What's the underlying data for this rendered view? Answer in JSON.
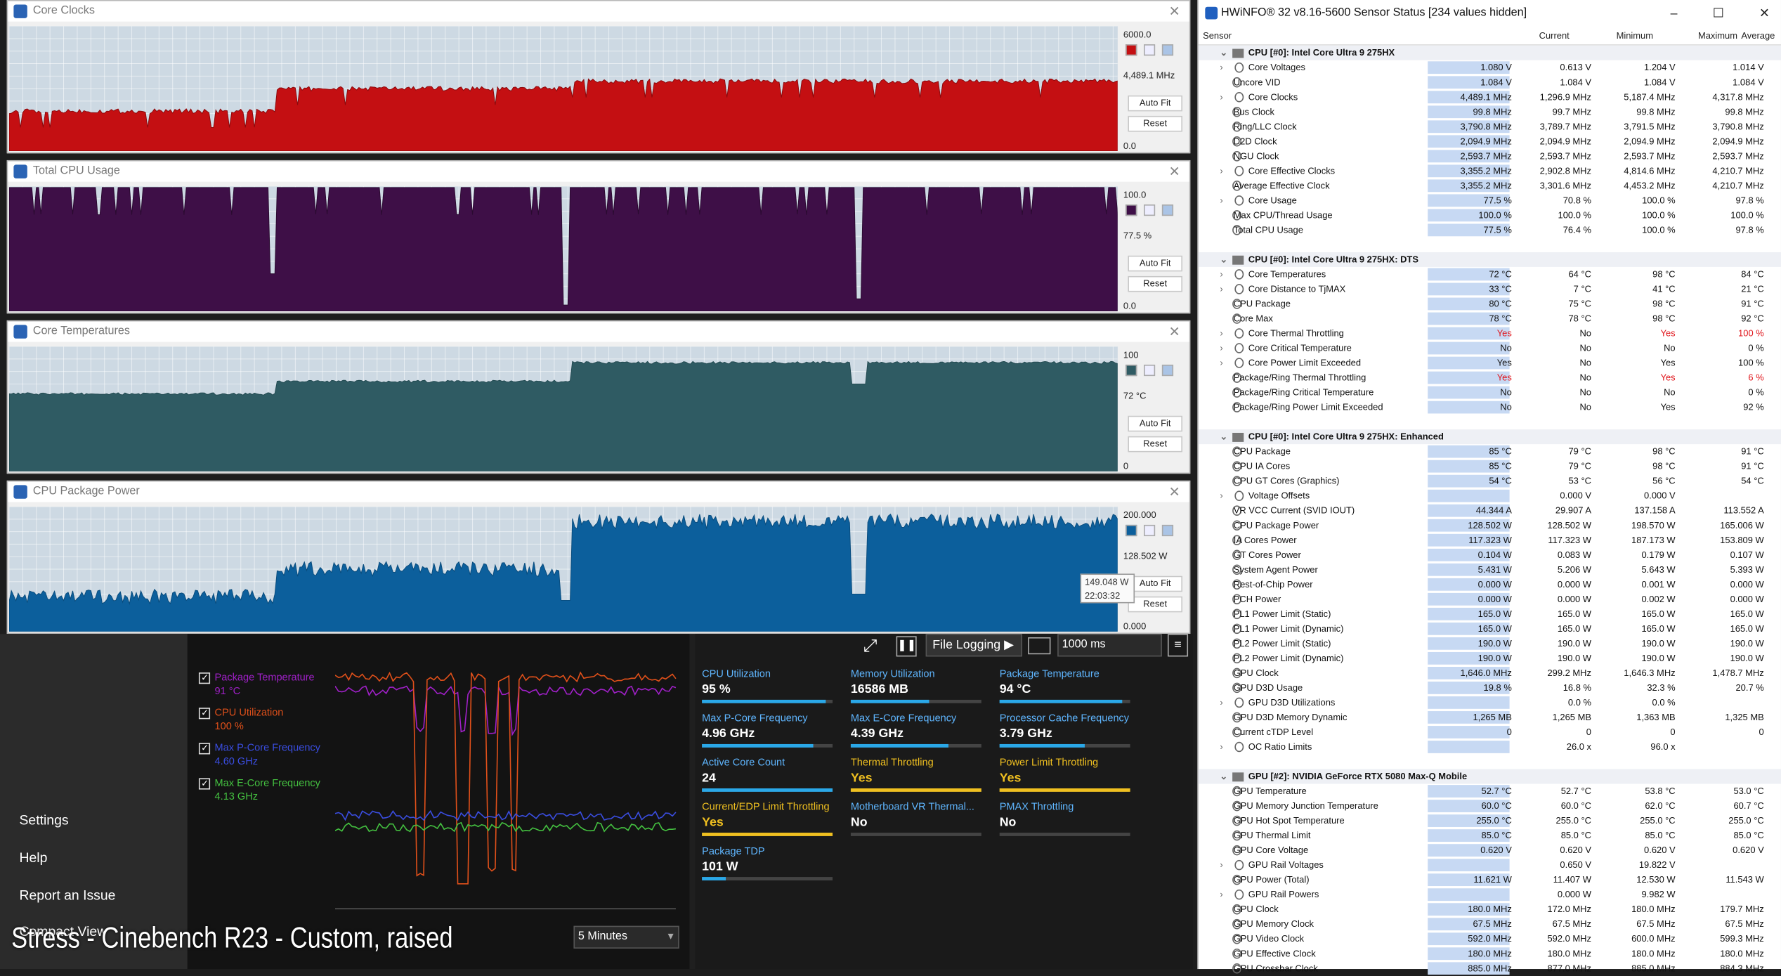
{
  "graphs": [
    {
      "title": "Core Clocks",
      "max_label": "6000.0",
      "cur_label": "4,489.1 MHz",
      "min_label": "0.0",
      "color": "#c40f12",
      "color2": "#8a0a0d",
      "max": 6000,
      "series_hint": "clock"
    },
    {
      "title": "Total CPU Usage",
      "max_label": "100.0",
      "cur_label": "77.5 %",
      "min_label": "0.0",
      "color": "#3e0f47",
      "color2": "#2a0a30",
      "max": 100,
      "series_hint": "usage"
    },
    {
      "title": "Core Temperatures",
      "max_label": "100",
      "cur_label": "72 °C",
      "min_label": "0",
      "color": "#2f5b63",
      "color2": "#234a51",
      "max": 100,
      "series_hint": "temp"
    },
    {
      "title": "CPU Package Power",
      "max_label": "200.000",
      "cur_label": "128.502 W",
      "min_label": "0.000",
      "color": "#0c5f9c",
      "color2": "#094c7d",
      "max": 200,
      "series_hint": "power"
    }
  ],
  "graph_buttons": {
    "auto_fit": "Auto Fit",
    "reset": "Reset"
  },
  "tooltip": {
    "value": "149.048 W",
    "time": "22:03:32"
  },
  "hwinfo": {
    "title": "HWiNFO® 32 v8.16-5600 Sensor Status [234 values hidden]",
    "window_controls": "– ☐ ✕",
    "columns": {
      "sensor": "Sensor",
      "current": "Current",
      "minimum": "Minimum",
      "maximum": "Maximum",
      "average": "Average"
    },
    "rows": [
      {
        "t": "sec",
        "n": "CPU [#0]: Intel Core Ultra 9 275HX"
      },
      {
        "t": "c",
        "n": "Core Voltages",
        "v": [
          "1.080 V",
          "0.613 V",
          "1.204 V",
          "1.014 V"
        ]
      },
      {
        "n": "Uncore VID",
        "v": [
          "1.084 V",
          "1.084 V",
          "1.084 V",
          "1.084 V"
        ]
      },
      {
        "t": "c",
        "n": "Core Clocks",
        "v": [
          "4,489.1 MHz",
          "1,296.9 MHz",
          "5,187.4 MHz",
          "4,317.8 MHz"
        ]
      },
      {
        "n": "Bus Clock",
        "v": [
          "99.8 MHz",
          "99.7 MHz",
          "99.8 MHz",
          "99.8 MHz"
        ]
      },
      {
        "n": "Ring/LLC Clock",
        "v": [
          "3,790.8 MHz",
          "3,789.7 MHz",
          "3,791.5 MHz",
          "3,790.8 MHz"
        ]
      },
      {
        "n": "D2D Clock",
        "v": [
          "2,094.9 MHz",
          "2,094.9 MHz",
          "2,094.9 MHz",
          "2,094.9 MHz"
        ]
      },
      {
        "n": "NGU Clock",
        "v": [
          "2,593.7 MHz",
          "2,593.7 MHz",
          "2,593.7 MHz",
          "2,593.7 MHz"
        ]
      },
      {
        "t": "c",
        "n": "Core Effective Clocks",
        "v": [
          "3,355.2 MHz",
          "2,902.8 MHz",
          "4,814.6 MHz",
          "4,210.7 MHz"
        ]
      },
      {
        "n": "Average Effective Clock",
        "v": [
          "3,355.2 MHz",
          "3,301.6 MHz",
          "4,453.2 MHz",
          "4,210.7 MHz"
        ]
      },
      {
        "t": "c",
        "n": "Core Usage",
        "v": [
          "77.5 %",
          "70.8 %",
          "100.0 %",
          "97.8 %"
        ]
      },
      {
        "n": "Max CPU/Thread Usage",
        "v": [
          "100.0 %",
          "100.0 %",
          "100.0 %",
          "100.0 %"
        ]
      },
      {
        "n": "Total CPU Usage",
        "v": [
          "77.5 %",
          "76.4 %",
          "100.0 %",
          "97.8 %"
        ]
      },
      {
        "t": "gap"
      },
      {
        "t": "sec",
        "n": "CPU [#0]: Intel Core Ultra 9 275HX: DTS"
      },
      {
        "t": "c",
        "n": "Core Temperatures",
        "v": [
          "72 °C",
          "64 °C",
          "98 °C",
          "84 °C"
        ]
      },
      {
        "t": "c",
        "n": "Core Distance to TjMAX",
        "v": [
          "33 °C",
          "7 °C",
          "41 °C",
          "21 °C"
        ]
      },
      {
        "n": "CPU Package",
        "v": [
          "80 °C",
          "75 °C",
          "98 °C",
          "91 °C"
        ]
      },
      {
        "n": "Core Max",
        "v": [
          "78 °C",
          "78 °C",
          "98 °C",
          "92 °C"
        ]
      },
      {
        "t": "c",
        "n": "Core Thermal Throttling",
        "v": [
          "Yes",
          "No",
          "Yes",
          "100 %"
        ],
        "red": [
          0,
          2,
          3
        ]
      },
      {
        "t": "c",
        "n": "Core Critical Temperature",
        "v": [
          "No",
          "No",
          "No",
          "0 %"
        ]
      },
      {
        "t": "c",
        "n": "Core Power Limit Exceeded",
        "v": [
          "Yes",
          "No",
          "Yes",
          "100 %"
        ]
      },
      {
        "n": "Package/Ring Thermal Throttling",
        "v": [
          "Yes",
          "No",
          "Yes",
          "6 %"
        ],
        "red": [
          0,
          2,
          3
        ]
      },
      {
        "n": "Package/Ring Critical Temperature",
        "v": [
          "No",
          "No",
          "No",
          "0 %"
        ]
      },
      {
        "n": "Package/Ring Power Limit Exceeded",
        "v": [
          "No",
          "No",
          "Yes",
          "92 %"
        ]
      },
      {
        "t": "gap"
      },
      {
        "t": "sec",
        "n": "CPU [#0]: Intel Core Ultra 9 275HX: Enhanced"
      },
      {
        "n": "CPU Package",
        "v": [
          "85 °C",
          "79 °C",
          "98 °C",
          "91 °C"
        ]
      },
      {
        "n": "CPU IA Cores",
        "v": [
          "85 °C",
          "79 °C",
          "98 °C",
          "91 °C"
        ]
      },
      {
        "n": "CPU GT Cores (Graphics)",
        "v": [
          "54 °C",
          "53 °C",
          "56 °C",
          "54 °C"
        ]
      },
      {
        "t": "c",
        "n": "Voltage Offsets",
        "v": [
          "",
          "0.000 V",
          "0.000 V",
          ""
        ]
      },
      {
        "n": "VR VCC Current (SVID IOUT)",
        "v": [
          "44.344 A",
          "29.907 A",
          "137.158 A",
          "113.552 A"
        ]
      },
      {
        "n": "CPU Package Power",
        "v": [
          "128.502 W",
          "128.502 W",
          "198.570 W",
          "165.006 W"
        ]
      },
      {
        "n": "IA Cores Power",
        "v": [
          "117.323 W",
          "117.323 W",
          "187.173 W",
          "153.809 W"
        ]
      },
      {
        "n": "GT Cores Power",
        "v": [
          "0.104 W",
          "0.083 W",
          "0.179 W",
          "0.107 W"
        ]
      },
      {
        "n": "System Agent Power",
        "v": [
          "5.431 W",
          "5.206 W",
          "5.643 W",
          "5.393 W"
        ]
      },
      {
        "n": "Rest-of-Chip Power",
        "v": [
          "0.000 W",
          "0.000 W",
          "0.001 W",
          "0.000 W"
        ]
      },
      {
        "n": "PCH Power",
        "v": [
          "0.000 W",
          "0.000 W",
          "0.002 W",
          "0.000 W"
        ]
      },
      {
        "n": "PL1 Power Limit (Static)",
        "v": [
          "165.0 W",
          "165.0 W",
          "165.0 W",
          "165.0 W"
        ]
      },
      {
        "n": "PL1 Power Limit (Dynamic)",
        "v": [
          "165.0 W",
          "165.0 W",
          "165.0 W",
          "165.0 W"
        ]
      },
      {
        "n": "PL2 Power Limit (Static)",
        "v": [
          "190.0 W",
          "190.0 W",
          "190.0 W",
          "190.0 W"
        ]
      },
      {
        "n": "PL2 Power Limit (Dynamic)",
        "v": [
          "190.0 W",
          "190.0 W",
          "190.0 W",
          "190.0 W"
        ]
      },
      {
        "n": "GPU Clock",
        "v": [
          "1,646.0 MHz",
          "299.2 MHz",
          "1,646.3 MHz",
          "1,478.7 MHz"
        ]
      },
      {
        "n": "GPU D3D Usage",
        "v": [
          "19.8 %",
          "16.8 %",
          "32.3 %",
          "20.7 %"
        ]
      },
      {
        "t": "c",
        "n": "GPU D3D Utilizations",
        "v": [
          "",
          "0.0 %",
          "0.0 %",
          ""
        ]
      },
      {
        "n": "GPU D3D Memory Dynamic",
        "v": [
          "1,265 MB",
          "1,265 MB",
          "1,363 MB",
          "1,325 MB"
        ]
      },
      {
        "n": "Current cTDP Level",
        "v": [
          "0",
          "0",
          "0",
          "0"
        ]
      },
      {
        "t": "c",
        "n": "OC Ratio Limits",
        "v": [
          "",
          "26.0 x",
          "96.0 x",
          ""
        ]
      },
      {
        "t": "gap"
      },
      {
        "t": "sec",
        "n": "GPU [#2]: NVIDIA  GeForce RTX 5080 Max-Q Mobile"
      },
      {
        "n": "GPU Temperature",
        "v": [
          "52.7 °C",
          "52.7 °C",
          "53.8 °C",
          "53.0 °C"
        ]
      },
      {
        "n": "GPU Memory Junction Temperature",
        "v": [
          "60.0 °C",
          "60.0 °C",
          "62.0 °C",
          "60.7 °C"
        ]
      },
      {
        "n": "GPU Hot Spot Temperature",
        "v": [
          "255.0 °C",
          "255.0 °C",
          "255.0 °C",
          "255.0 °C"
        ]
      },
      {
        "n": "GPU Thermal Limit",
        "v": [
          "85.0 °C",
          "85.0 °C",
          "85.0 °C",
          "85.0 °C"
        ]
      },
      {
        "n": "GPU Core Voltage",
        "v": [
          "0.620 V",
          "0.620 V",
          "0.620 V",
          "0.620 V"
        ]
      },
      {
        "t": "c",
        "n": "GPU Rail Voltages",
        "v": [
          "",
          "0.650 V",
          "19.822 V",
          ""
        ]
      },
      {
        "n": "GPU Power (Total)",
        "v": [
          "11.621 W",
          "11.407 W",
          "12.530 W",
          "11.543 W"
        ]
      },
      {
        "t": "c",
        "n": "GPU Rail Powers",
        "v": [
          "",
          "0.000 W",
          "9.982 W",
          ""
        ]
      },
      {
        "n": "GPU Clock",
        "v": [
          "180.0 MHz",
          "172.0 MHz",
          "180.0 MHz",
          "179.7 MHz"
        ]
      },
      {
        "n": "GPU Memory Clock",
        "v": [
          "67.5 MHz",
          "67.5 MHz",
          "67.5 MHz",
          "67.5 MHz"
        ]
      },
      {
        "n": "GPU Video Clock",
        "v": [
          "592.0 MHz",
          "592.0 MHz",
          "600.0 MHz",
          "599.3 MHz"
        ]
      },
      {
        "n": "GPU Effective Clock",
        "v": [
          "180.0 MHz",
          "180.0 MHz",
          "180.0 MHz",
          "180.0 MHz"
        ]
      },
      {
        "n": "GPU Crossbar Clock",
        "v": [
          "885.0 MHz",
          "877.0 MHz",
          "885.0 MHz",
          "884.3 MHz"
        ]
      }
    ]
  },
  "nav": {
    "settings": "Settings",
    "help": "Help",
    "report": "Report an Issue",
    "compact": "Compact View"
  },
  "legend": [
    {
      "name": "Package Temperature",
      "value": "91 °C",
      "color": "#a020c8"
    },
    {
      "name": "CPU Utilization",
      "value": "100 %",
      "color": "#e0501a"
    },
    {
      "name": "Max P-Core Frequency",
      "value": "4.60 GHz",
      "color": "#3a4de0"
    },
    {
      "name": "Max E-Core Frequency",
      "value": "4.13 GHz",
      "color": "#44c040"
    }
  ],
  "toolbar": {
    "file_logging": "File Logging ▶",
    "interval": "1000 ms"
  },
  "tiles": [
    {
      "label": "CPU Utilization",
      "value": "95 %",
      "color": "#fff",
      "bar": "#2aa8e8",
      "fill": 0.95
    },
    {
      "label": "Memory Utilization",
      "value": "16586 MB",
      "color": "#fff",
      "bar": "#2aa8e8",
      "fill": 0.6
    },
    {
      "label": "Package Temperature",
      "value": "94 °C",
      "color": "#fff",
      "bar": "#2aa8e8",
      "fill": 0.94
    },
    {
      "label": "Max P-Core Frequency",
      "value": "4.96 GHz",
      "color": "#fff",
      "bar": "#2aa8e8",
      "fill": 0.85
    },
    {
      "label": "Max E-Core Frequency",
      "value": "4.39 GHz",
      "color": "#fff",
      "bar": "#2aa8e8",
      "fill": 0.75
    },
    {
      "label": "Processor Cache Frequency",
      "value": "3.79 GHz",
      "color": "#fff",
      "bar": "#2aa8e8",
      "fill": 0.65
    },
    {
      "label": "Active Core Count",
      "value": "24",
      "color": "#fff",
      "bar": "#2aa8e8",
      "fill": 1.0
    },
    {
      "label": "Thermal Throttling",
      "value": "Yes",
      "color": "#f0c020",
      "bar": "#f0c020",
      "fill": 1.0,
      "label_color": "#f0c020"
    },
    {
      "label": "Power Limit Throttling",
      "value": "Yes",
      "color": "#f0c020",
      "bar": "#f0c020",
      "fill": 1.0,
      "label_color": "#f0c020"
    },
    {
      "label": "Current/EDP Limit Throttling",
      "value": "Yes",
      "color": "#f0c020",
      "bar": "#f0c020",
      "fill": 1.0,
      "label_color": "#f0c020"
    },
    {
      "label": "Motherboard VR Thermal...",
      "value": "No",
      "color": "#fff",
      "bar": "#2aa8e8",
      "fill": 0.0
    },
    {
      "label": "PMAX Throttling",
      "value": "No",
      "color": "#fff",
      "bar": "#2aa8e8",
      "fill": 0.0
    },
    {
      "label": "Package TDP",
      "value": "101 W",
      "color": "#fff",
      "bar": "#2aa8e8",
      "fill": 0.18
    }
  ],
  "range_select": "5 Minutes",
  "caption": "Stress - Cinebench R23 - Custom, raised"
}
